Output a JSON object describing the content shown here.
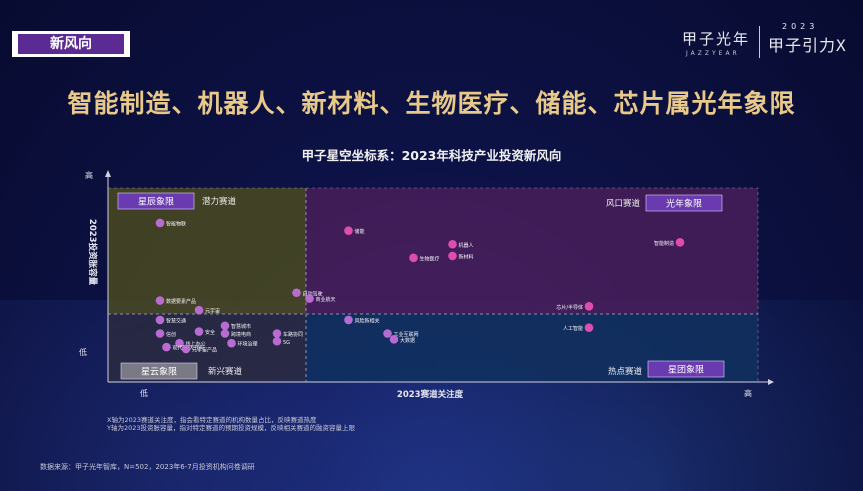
{
  "tag": "新风向",
  "brand": {
    "cn": "甲子光年",
    "en": "JAZZYEAR",
    "right": "甲子引力X",
    "year": "2023"
  },
  "headline": "智能制造、机器人、新材料、生物医疗、储能、芯片属光年象限",
  "notes": [
    "X轴为2023赛道关注度，指会看特定赛道的机构数量占比，反映赛道热度",
    "Y轴为2023投资胀容量，指对特定赛道的预期投资规模，反映相关赛道的融资容量上限"
  ],
  "source": "数据来源：甲子光年智库，N=502，2023年6-7月投资机构问卷调研",
  "colors": {
    "accent": "#e8c98a",
    "point": "#c06fd8",
    "point_hot": "#e84fb0"
  },
  "chart_data": {
    "type": "scatter",
    "title": "甲子星空坐标系：2023年科技产业投资新风向",
    "xlabel": "2023赛道关注度",
    "ylabel": "2023投资胀容量",
    "x_low": "低",
    "x_high": "高",
    "y_low": "低",
    "y_high": "高",
    "xlim": [
      0,
      100
    ],
    "ylim": [
      0,
      100
    ],
    "quadrants": [
      {
        "label": "星辰象限",
        "track": "潜力赛道",
        "position": "top-left",
        "color": "#4a4a20"
      },
      {
        "label": "光年象限",
        "track": "风口赛道",
        "position": "top-right",
        "color": "#4a1f5a"
      },
      {
        "label": "星云象限",
        "track": "新兴赛道",
        "position": "bottom-left",
        "color": "#2a2a40"
      },
      {
        "label": "星团象限",
        "track": "热点赛道",
        "position": "bottom-right",
        "color": "#10305e"
      }
    ],
    "points": [
      {
        "name": "智能物联",
        "x": 8,
        "y": 82
      },
      {
        "name": "储能",
        "x": 37,
        "y": 78
      },
      {
        "name": "机器人",
        "x": 53,
        "y": 71
      },
      {
        "name": "新材料",
        "x": 53,
        "y": 65
      },
      {
        "name": "生物医疗",
        "x": 47,
        "y": 64
      },
      {
        "name": "智能制造",
        "x": 88,
        "y": 72
      },
      {
        "name": "自动驾驶",
        "x": 29,
        "y": 46
      },
      {
        "name": "商业航天",
        "x": 31,
        "y": 43
      },
      {
        "name": "数据要素产品",
        "x": 8,
        "y": 42
      },
      {
        "name": "元宇宙",
        "x": 14,
        "y": 37
      },
      {
        "name": "芯片/半导体",
        "x": 74,
        "y": 39
      },
      {
        "name": "智慧交通",
        "x": 8,
        "y": 32
      },
      {
        "name": "信创",
        "x": 8,
        "y": 25
      },
      {
        "name": "安全",
        "x": 14,
        "y": 26
      },
      {
        "name": "智慧城市",
        "x": 18,
        "y": 29
      },
      {
        "name": "跨境电商",
        "x": 18,
        "y": 25
      },
      {
        "name": "线上办公",
        "x": 11,
        "y": 20
      },
      {
        "name": "环境治理",
        "x": 19,
        "y": 20
      },
      {
        "name": "现代码/大代码",
        "x": 9,
        "y": 18
      },
      {
        "name": "元宇宙产品",
        "x": 12,
        "y": 17
      },
      {
        "name": "车路协同",
        "x": 26,
        "y": 25
      },
      {
        "name": "5G",
        "x": 26,
        "y": 21
      },
      {
        "name": "风险新相关",
        "x": 37,
        "y": 32
      },
      {
        "name": "工业互联网",
        "x": 43,
        "y": 25
      },
      {
        "name": "大数据",
        "x": 44,
        "y": 22
      },
      {
        "name": "人工智能",
        "x": 74,
        "y": 28
      }
    ]
  }
}
